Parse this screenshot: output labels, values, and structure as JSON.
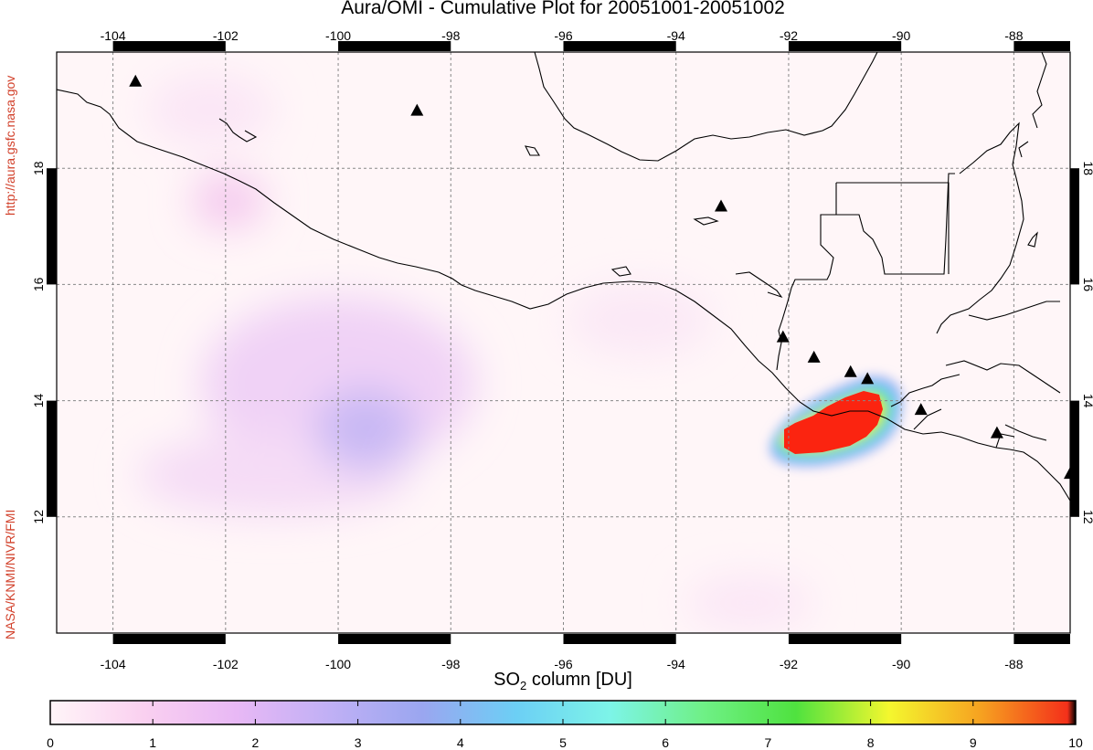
{
  "title": "Aura/OMI - Cumulative Plot for 20051001-20051002",
  "side_labels": {
    "url": "http://aura.gsfc.nasa.gov",
    "credit": "NASA/KNMI/NIVR/FMI"
  },
  "map": {
    "lon_range": [
      -105,
      -87
    ],
    "lat_range": [
      10,
      20
    ],
    "lon_ticks": [
      -104,
      -102,
      -100,
      -98,
      -96,
      -94,
      -92,
      -90,
      -88
    ],
    "lat_ticks": [
      12,
      14,
      16,
      18
    ],
    "volcanoes": [
      {
        "lon": -103.6,
        "lat": 19.5
      },
      {
        "lon": -98.6,
        "lat": 19.0
      },
      {
        "lon": -93.2,
        "lat": 17.35
      },
      {
        "lon": -92.1,
        "lat": 15.1
      },
      {
        "lon": -91.55,
        "lat": 14.75
      },
      {
        "lon": -90.9,
        "lat": 14.5
      },
      {
        "lon": -90.6,
        "lat": 14.38
      },
      {
        "lon": -89.65,
        "lat": 13.85
      },
      {
        "lon": -88.3,
        "lat": 13.45
      },
      {
        "lon": -87.0,
        "lat": 12.75
      }
    ]
  },
  "colorbar": {
    "title_prefix": "SO",
    "title_sub": "2",
    "title_suffix": " column [DU]",
    "ticks": [
      0,
      1,
      2,
      3,
      4,
      5,
      6,
      7,
      8,
      9,
      10
    ],
    "range": [
      0,
      10
    ],
    "colors": [
      "#fff5f8",
      "#fad0f0",
      "#e8b8f5",
      "#c0b0f5",
      "#9aa6f0",
      "#6ccff5",
      "#7df4e8",
      "#6ff087",
      "#4fe23f",
      "#f4f72e",
      "#f6a020",
      "#f4301a",
      "#000000"
    ]
  }
}
